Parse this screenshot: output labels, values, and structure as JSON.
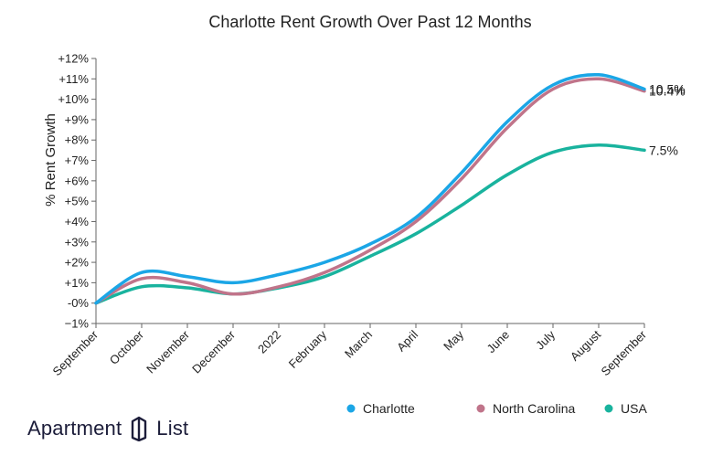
{
  "chart_data": {
    "type": "line",
    "title": "Charlotte Rent Growth Over Past 12 Months",
    "ylabel": "% Rent Growth",
    "xlabel": "",
    "categories": [
      "September",
      "October",
      "November",
      "December",
      "2022",
      "February",
      "March",
      "April",
      "May",
      "June",
      "July",
      "August",
      "September"
    ],
    "ylim": [
      -1,
      12
    ],
    "yticks": [
      -1,
      0,
      1,
      2,
      3,
      4,
      5,
      6,
      7,
      8,
      9,
      10,
      11,
      12
    ],
    "ytick_labels": [
      "−1%",
      "-0%",
      "+1%",
      "+2%",
      "+3%",
      "+4%",
      "+5%",
      "+6%",
      "+7%",
      "+8%",
      "+9%",
      "+10%",
      "+11%",
      "+12%"
    ],
    "grid": false,
    "legend_position": "bottom-right",
    "series": [
      {
        "name": "Charlotte",
        "color": "#1ba6e6",
        "values": [
          0.0,
          1.5,
          1.3,
          1.0,
          1.4,
          2.0,
          2.9,
          4.2,
          6.4,
          8.9,
          10.7,
          11.2,
          10.5
        ],
        "end_label": "10.5%"
      },
      {
        "name": "North Carolina",
        "color": "#c0748a",
        "values": [
          0.0,
          1.2,
          1.0,
          0.45,
          0.8,
          1.5,
          2.6,
          4.0,
          6.1,
          8.6,
          10.5,
          11.0,
          10.4
        ],
        "end_label": "10.4%"
      },
      {
        "name": "USA",
        "color": "#19b39e",
        "values": [
          0.0,
          0.8,
          0.75,
          0.45,
          0.75,
          1.3,
          2.3,
          3.4,
          4.8,
          6.3,
          7.4,
          7.75,
          7.5
        ],
        "end_label": "7.5%"
      }
    ]
  },
  "brand": {
    "name_left": "Apartment",
    "name_right": "List"
  }
}
